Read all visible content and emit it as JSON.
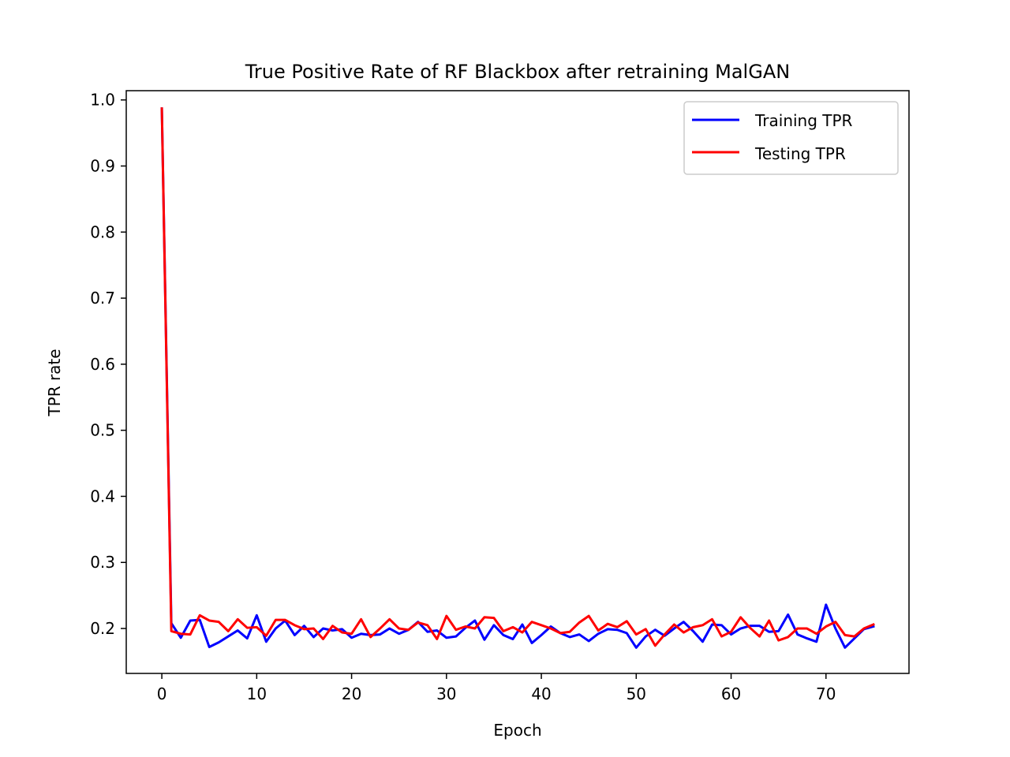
{
  "chart_data": {
    "type": "line",
    "title": "True Positive Rate of RF Blackbox after retraining MalGAN",
    "xlabel": "Epoch",
    "ylabel": "TPR rate",
    "xlim": [
      -3.75,
      78.75
    ],
    "ylim": [
      0.132,
      1.014
    ],
    "x_ticks": [
      0,
      10,
      20,
      30,
      40,
      50,
      60,
      70
    ],
    "x_tick_labels": [
      "0",
      "10",
      "20",
      "30",
      "40",
      "50",
      "60",
      "70"
    ],
    "y_ticks": [
      0.2,
      0.3,
      0.4,
      0.5,
      0.6,
      0.7,
      0.8,
      0.9,
      1.0
    ],
    "y_tick_labels": [
      "0.2",
      "0.3",
      "0.4",
      "0.5",
      "0.6",
      "0.7",
      "0.8",
      "0.9",
      "1.0"
    ],
    "grid": false,
    "legend_position": "top-right",
    "x": [
      0,
      1,
      2,
      3,
      4,
      5,
      6,
      7,
      8,
      9,
      10,
      11,
      12,
      13,
      14,
      15,
      16,
      17,
      18,
      19,
      20,
      21,
      22,
      23,
      24,
      25,
      26,
      27,
      28,
      29,
      30,
      31,
      32,
      33,
      34,
      35,
      36,
      37,
      38,
      39,
      40,
      41,
      42,
      43,
      44,
      45,
      46,
      47,
      48,
      49,
      50,
      51,
      52,
      53,
      54,
      55,
      56,
      57,
      58,
      59,
      60,
      61,
      62,
      63,
      64,
      65,
      66,
      67,
      68,
      69,
      70,
      71,
      72,
      73,
      74,
      75
    ],
    "series": [
      {
        "name": "Training TPR",
        "color": "#0000ff",
        "values": [
          0.987,
          0.208,
          0.186,
          0.212,
          0.213,
          0.172,
          0.179,
          0.188,
          0.197,
          0.185,
          0.22,
          0.18,
          0.2,
          0.212,
          0.19,
          0.204,
          0.187,
          0.2,
          0.197,
          0.199,
          0.186,
          0.192,
          0.19,
          0.191,
          0.2,
          0.192,
          0.198,
          0.21,
          0.195,
          0.197,
          0.186,
          0.188,
          0.201,
          0.212,
          0.183,
          0.205,
          0.19,
          0.184,
          0.206,
          0.178,
          0.19,
          0.203,
          0.193,
          0.187,
          0.191,
          0.181,
          0.192,
          0.199,
          0.198,
          0.193,
          0.171,
          0.188,
          0.198,
          0.189,
          0.2,
          0.21,
          0.196,
          0.18,
          0.206,
          0.205,
          0.191,
          0.2,
          0.204,
          0.204,
          0.195,
          0.196,
          0.221,
          0.191,
          0.185,
          0.18,
          0.236,
          0.2,
          0.171,
          0.185,
          0.199,
          0.203
        ]
      },
      {
        "name": "Testing TPR",
        "color": "#ff0000",
        "values": [
          0.987,
          0.196,
          0.192,
          0.191,
          0.22,
          0.212,
          0.21,
          0.196,
          0.214,
          0.201,
          0.202,
          0.189,
          0.213,
          0.213,
          0.205,
          0.199,
          0.2,
          0.184,
          0.204,
          0.194,
          0.192,
          0.214,
          0.187,
          0.2,
          0.214,
          0.2,
          0.198,
          0.209,
          0.205,
          0.184,
          0.219,
          0.198,
          0.203,
          0.2,
          0.217,
          0.216,
          0.196,
          0.202,
          0.194,
          0.21,
          0.205,
          0.2,
          0.193,
          0.195,
          0.209,
          0.219,
          0.197,
          0.207,
          0.202,
          0.211,
          0.191,
          0.199,
          0.174,
          0.191,
          0.206,
          0.194,
          0.202,
          0.205,
          0.214,
          0.188,
          0.195,
          0.217,
          0.201,
          0.188,
          0.212,
          0.182,
          0.187,
          0.2,
          0.2,
          0.192,
          0.203,
          0.21,
          0.19,
          0.188,
          0.2,
          0.206
        ]
      }
    ]
  }
}
